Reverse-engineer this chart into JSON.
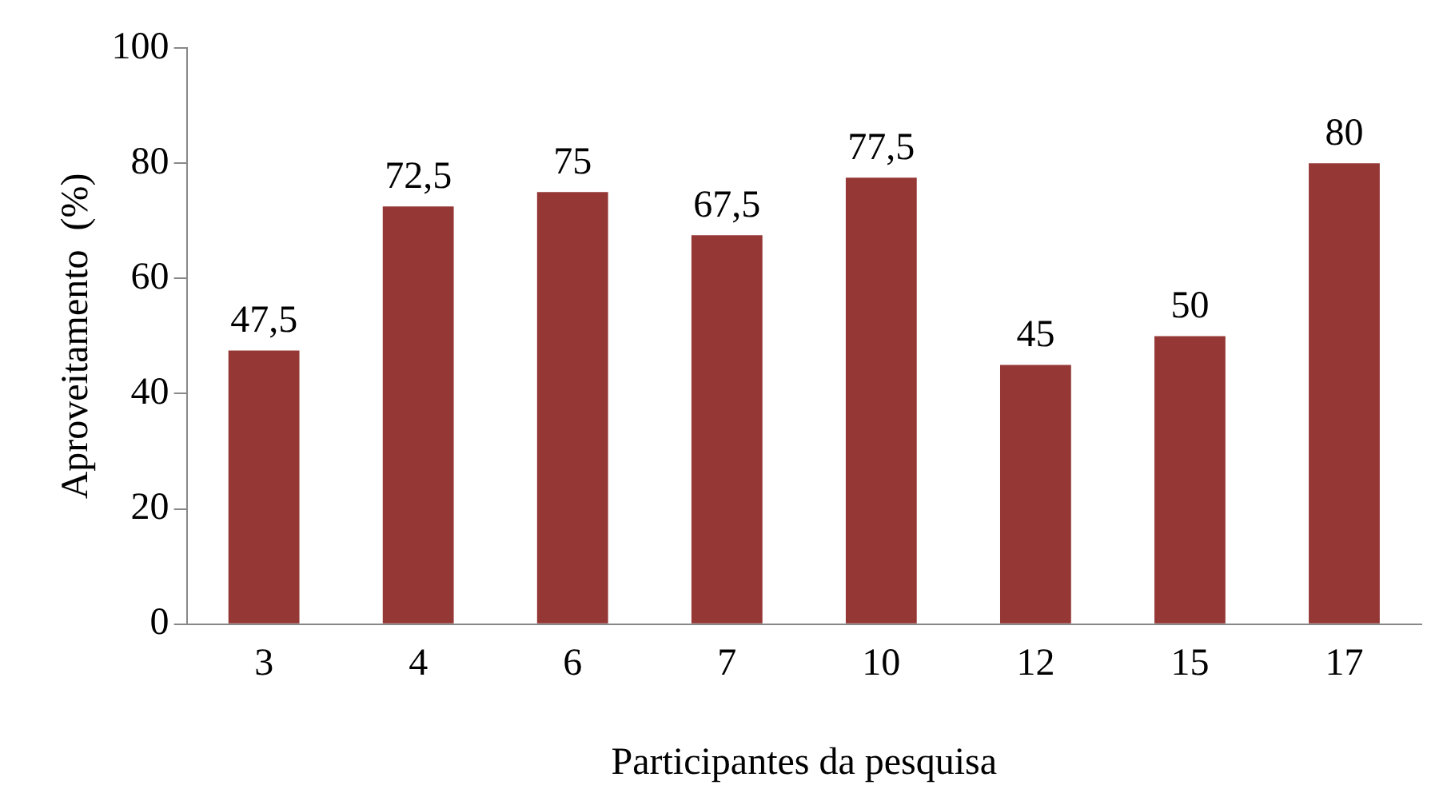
{
  "chart_data": {
    "type": "bar",
    "xlabel": "Participantes da pesquisa",
    "ylabel": "Aproveitamento  (%)",
    "categories": [
      "3",
      "4",
      "6",
      "7",
      "10",
      "12",
      "15",
      "17"
    ],
    "values": [
      47.5,
      72.5,
      75,
      67.5,
      77.5,
      45,
      50,
      80
    ],
    "value_labels": [
      "47,5",
      "72,5",
      "75",
      "67,5",
      "77,5",
      "45",
      "50",
      "80"
    ],
    "color": "#953735",
    "ylim": [
      0,
      100
    ],
    "yticks": [
      0,
      20,
      40,
      60,
      80,
      100
    ],
    "grid": false,
    "legend": false
  }
}
